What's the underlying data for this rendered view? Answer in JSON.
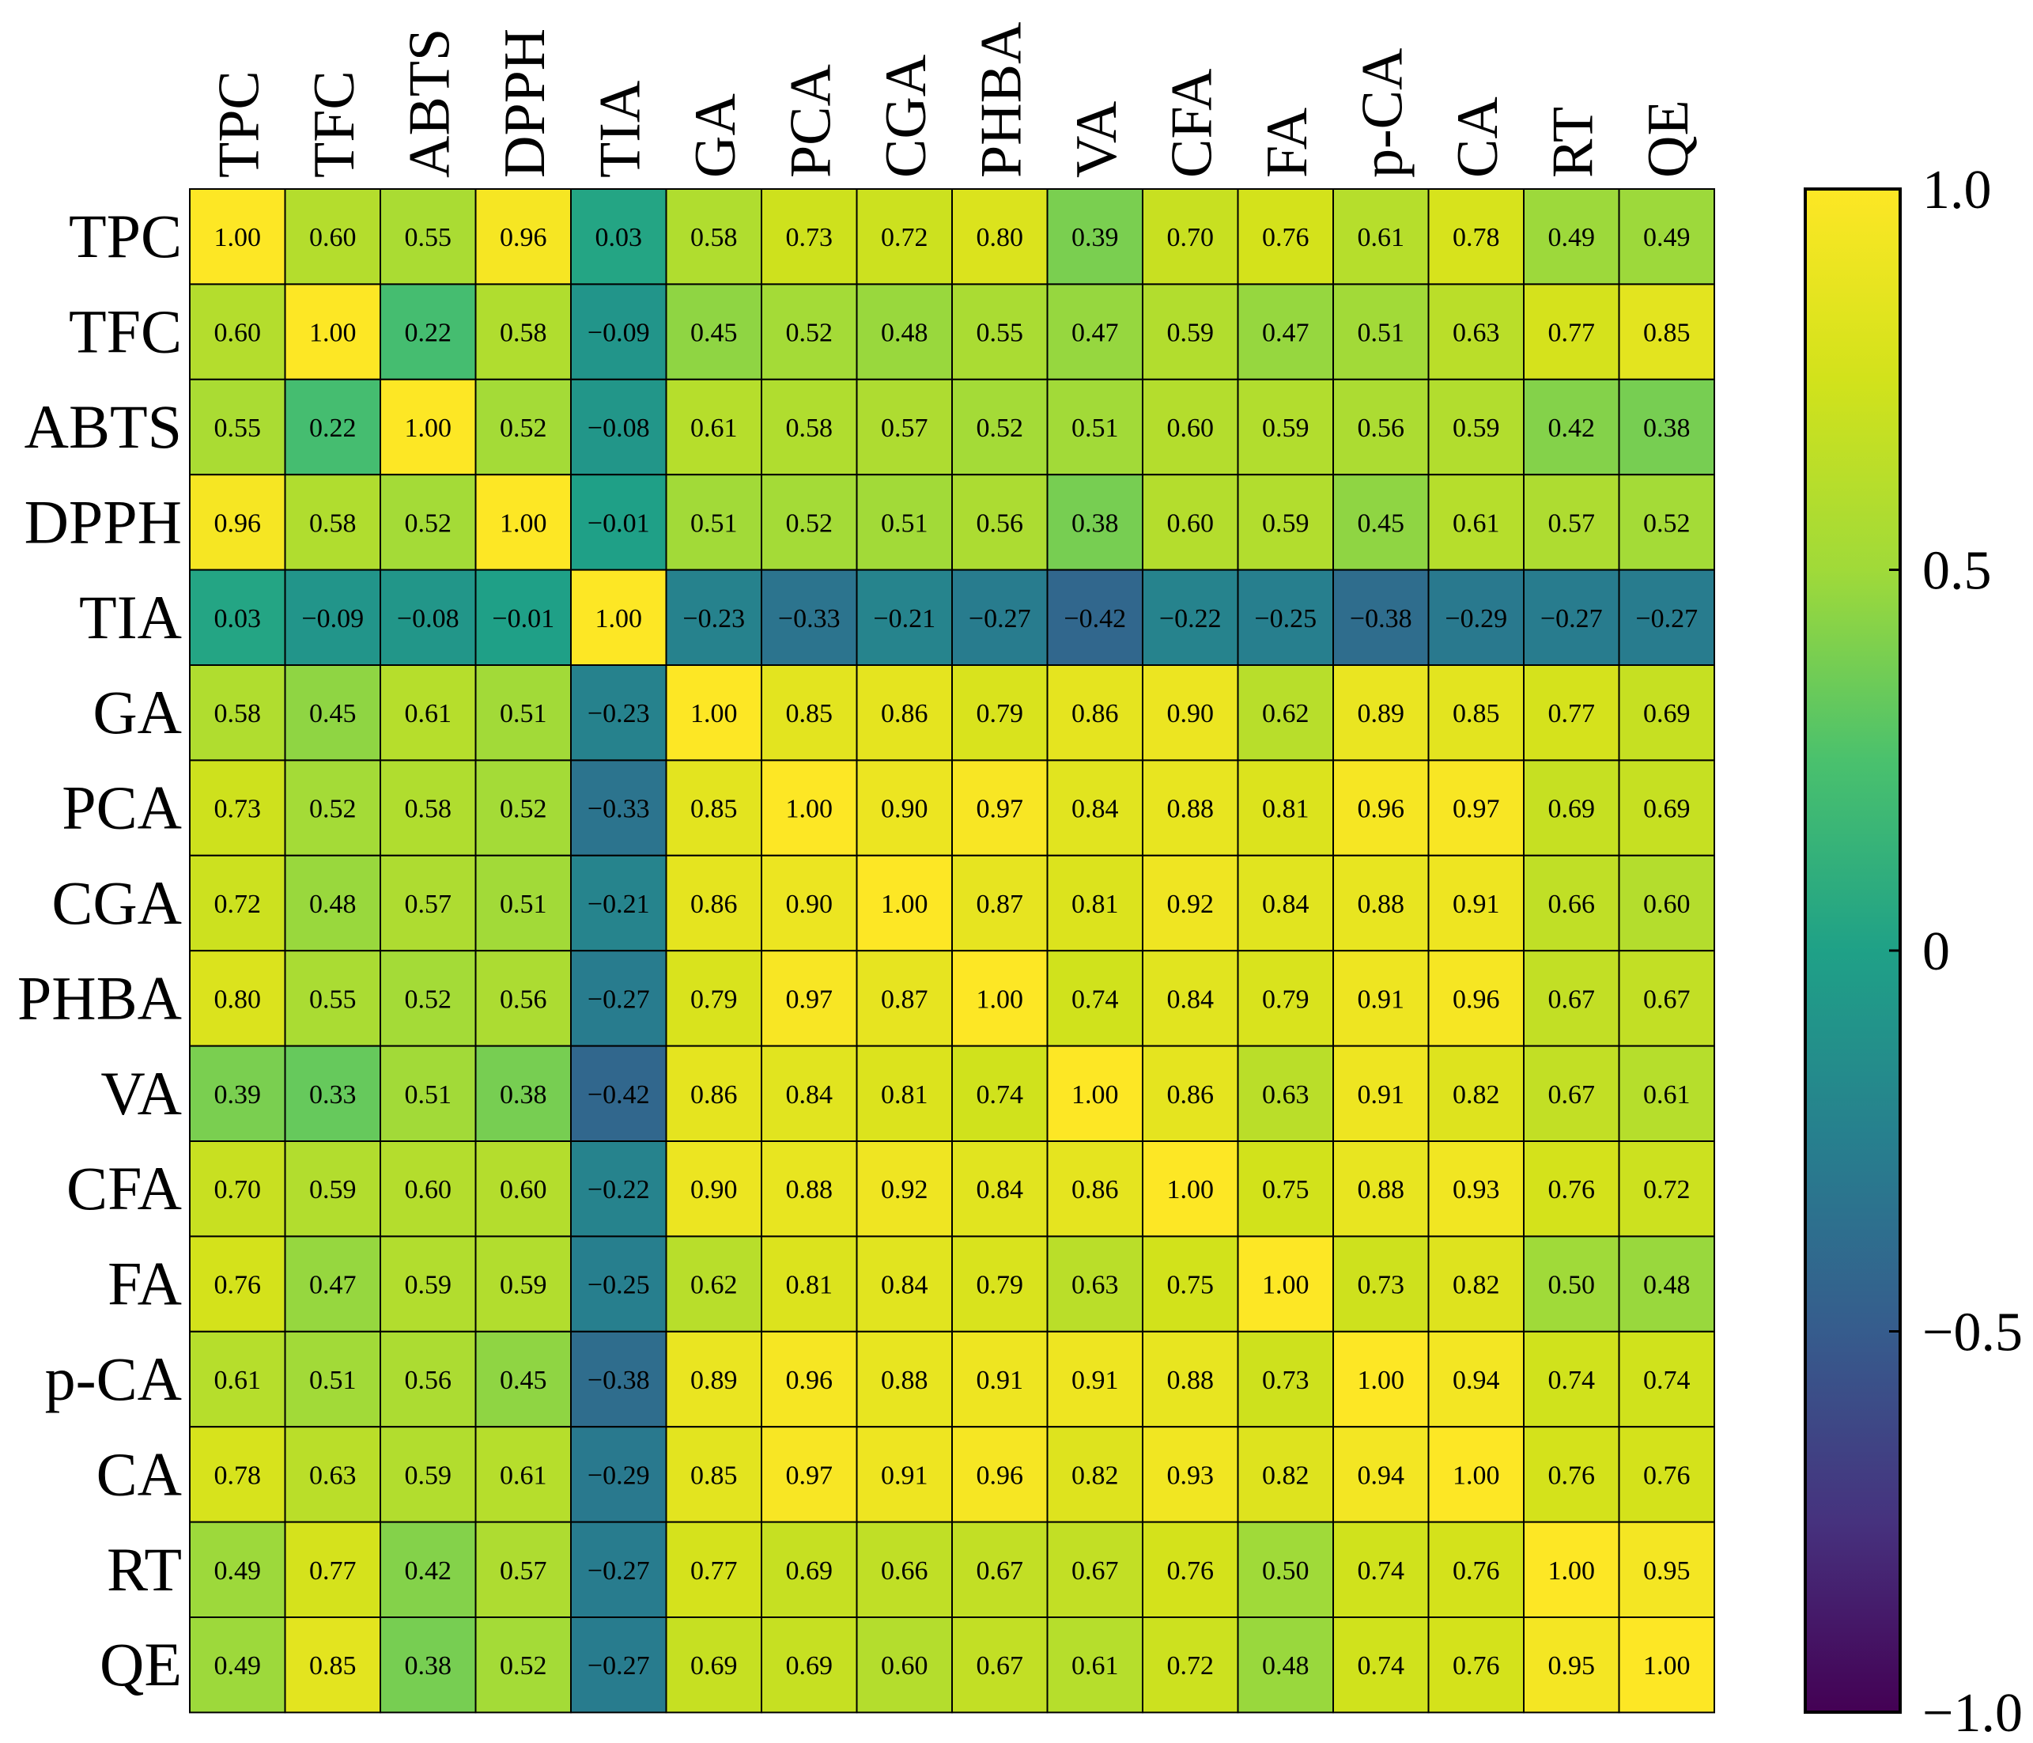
{
  "chart_data": {
    "type": "heatmap",
    "title": "",
    "colormap": "viridis",
    "row_labels": [
      "TPC",
      "TFC",
      "ABTS",
      "DPPH",
      "TIA",
      "GA",
      "PCA",
      "CGA",
      "PHBA",
      "VA",
      "CFA",
      "FA",
      "p-CA",
      "CA",
      "RT",
      "QE"
    ],
    "col_labels": [
      "TPC",
      "TFC",
      "ABTS",
      "DPPH",
      "TIA",
      "GA",
      "PCA",
      "CGA",
      "PHBA",
      "VA",
      "CFA",
      "FA",
      "p-CA",
      "CA",
      "RT",
      "QE"
    ],
    "values": [
      [
        1.0,
        0.6,
        0.55,
        0.96,
        0.03,
        0.58,
        0.73,
        0.72,
        0.8,
        0.39,
        0.7,
        0.76,
        0.61,
        0.78,
        0.49,
        0.49
      ],
      [
        0.6,
        1.0,
        0.22,
        0.58,
        -0.09,
        0.45,
        0.52,
        0.48,
        0.55,
        0.47,
        0.59,
        0.47,
        0.51,
        0.63,
        0.77,
        0.85
      ],
      [
        0.55,
        0.22,
        1.0,
        0.52,
        -0.08,
        0.61,
        0.58,
        0.57,
        0.52,
        0.51,
        0.6,
        0.59,
        0.56,
        0.59,
        0.42,
        0.38
      ],
      [
        0.96,
        0.58,
        0.52,
        1.0,
        -0.01,
        0.51,
        0.52,
        0.51,
        0.56,
        0.38,
        0.6,
        0.59,
        0.45,
        0.61,
        0.57,
        0.52
      ],
      [
        0.03,
        -0.09,
        -0.08,
        -0.01,
        1.0,
        -0.23,
        -0.33,
        -0.21,
        -0.27,
        -0.42,
        -0.22,
        -0.25,
        -0.38,
        -0.29,
        -0.27,
        -0.27
      ],
      [
        0.58,
        0.45,
        0.61,
        0.51,
        -0.23,
        1.0,
        0.85,
        0.86,
        0.79,
        0.86,
        0.9,
        0.62,
        0.89,
        0.85,
        0.77,
        0.69
      ],
      [
        0.73,
        0.52,
        0.58,
        0.52,
        -0.33,
        0.85,
        1.0,
        0.9,
        0.97,
        0.84,
        0.88,
        0.81,
        0.96,
        0.97,
        0.69,
        0.69
      ],
      [
        0.72,
        0.48,
        0.57,
        0.51,
        -0.21,
        0.86,
        0.9,
        1.0,
        0.87,
        0.81,
        0.92,
        0.84,
        0.88,
        0.91,
        0.66,
        0.6
      ],
      [
        0.8,
        0.55,
        0.52,
        0.56,
        -0.27,
        0.79,
        0.97,
        0.87,
        1.0,
        0.74,
        0.84,
        0.79,
        0.91,
        0.96,
        0.67,
        0.67
      ],
      [
        0.39,
        0.33,
        0.51,
        0.38,
        -0.42,
        0.86,
        0.84,
        0.81,
        0.74,
        1.0,
        0.86,
        0.63,
        0.91,
        0.82,
        0.67,
        0.61
      ],
      [
        0.7,
        0.59,
        0.6,
        0.6,
        -0.22,
        0.9,
        0.88,
        0.92,
        0.84,
        0.86,
        1.0,
        0.75,
        0.88,
        0.93,
        0.76,
        0.72
      ],
      [
        0.76,
        0.47,
        0.59,
        0.59,
        -0.25,
        0.62,
        0.81,
        0.84,
        0.79,
        0.63,
        0.75,
        1.0,
        0.73,
        0.82,
        0.5,
        0.48
      ],
      [
        0.61,
        0.51,
        0.56,
        0.45,
        -0.38,
        0.89,
        0.96,
        0.88,
        0.91,
        0.91,
        0.88,
        0.73,
        1.0,
        0.94,
        0.74,
        0.74
      ],
      [
        0.78,
        0.63,
        0.59,
        0.61,
        -0.29,
        0.85,
        0.97,
        0.91,
        0.96,
        0.82,
        0.93,
        0.82,
        0.94,
        1.0,
        0.76,
        0.76
      ],
      [
        0.49,
        0.77,
        0.42,
        0.57,
        -0.27,
        0.77,
        0.69,
        0.66,
        0.67,
        0.67,
        0.76,
        0.5,
        0.74,
        0.76,
        1.0,
        0.95
      ],
      [
        0.49,
        0.85,
        0.38,
        0.52,
        -0.27,
        0.69,
        0.69,
        0.6,
        0.67,
        0.61,
        0.72,
        0.48,
        0.74,
        0.76,
        0.95,
        1.0
      ]
    ],
    "vmin": -1.0,
    "vmax": 1.0,
    "colorbar": {
      "ticks": [
        1.0,
        0.5,
        0,
        -0.5,
        -1.0
      ],
      "tick_labels": [
        "1.0",
        "0.5",
        "0",
        "−0.5",
        "−1.0"
      ]
    }
  }
}
